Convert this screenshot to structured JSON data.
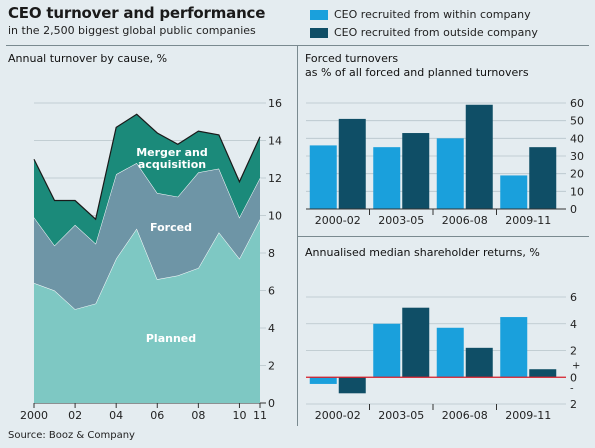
{
  "header": {
    "title": "CEO turnover and performance",
    "subtitle": "in the 2,500 biggest global public companies",
    "source": "Source: Booz & Company"
  },
  "legend": {
    "items": [
      {
        "label": "CEO recruited from within company",
        "color": "#1aa0dc"
      },
      {
        "label": "CEO recruited from outside company",
        "color": "#0f4e66"
      }
    ]
  },
  "colors": {
    "planned": "#7ec8c3",
    "forced": "#6e95a6",
    "merger": "#1b8a7a",
    "zero_line": "#d81e2a"
  },
  "chart_data": [
    {
      "id": "turnover",
      "type": "area",
      "title": "Annual turnover by cause, %",
      "x": [
        2000,
        2001,
        2002,
        2003,
        2004,
        2005,
        2006,
        2007,
        2008,
        2009,
        2010,
        2011
      ],
      "x_tick_labels": [
        "2000",
        "02",
        "04",
        "06",
        "08",
        "10",
        "11"
      ],
      "x_tick_values": [
        2000,
        2002,
        2004,
        2006,
        2008,
        2010,
        2011
      ],
      "ylim": [
        0,
        16
      ],
      "y_ticks": [
        0,
        2,
        4,
        6,
        8,
        10,
        12,
        14,
        16
      ],
      "stacked": true,
      "series": [
        {
          "name": "Planned",
          "values": [
            6.4,
            6.0,
            5.0,
            5.3,
            7.7,
            9.3,
            6.6,
            6.8,
            7.2,
            9.1,
            7.7,
            9.8
          ]
        },
        {
          "name": "Forced",
          "values": [
            3.5,
            2.4,
            4.5,
            3.2,
            4.5,
            3.5,
            4.6,
            4.2,
            5.1,
            3.4,
            2.2,
            2.2
          ]
        },
        {
          "name": "Merger and acquisition",
          "values": [
            3.1,
            2.4,
            1.3,
            1.3,
            2.5,
            2.6,
            3.2,
            2.8,
            2.2,
            1.8,
            1.9,
            2.2
          ]
        }
      ],
      "area_labels": [
        "Planned",
        "Forced",
        "Merger and",
        "acquisition"
      ]
    },
    {
      "id": "forced",
      "type": "bar",
      "title": "Forced turnovers",
      "subtitle": "as % of all forced and planned turnovers",
      "categories": [
        "2000-02",
        "2003-05",
        "2006-08",
        "2009-11"
      ],
      "ylim": [
        0,
        60
      ],
      "y_ticks": [
        0,
        10,
        20,
        30,
        40,
        50,
        60
      ],
      "series": [
        {
          "name": "CEO recruited from within company",
          "values": [
            36,
            35,
            40,
            19
          ]
        },
        {
          "name": "CEO recruited from outside company",
          "values": [
            51,
            43,
            59,
            35
          ]
        }
      ]
    },
    {
      "id": "returns",
      "type": "bar",
      "title": "Annualised median shareholder returns, %",
      "categories": [
        "2000-02",
        "2003-05",
        "2006-08",
        "2009-11"
      ],
      "ylim": [
        -2,
        6
      ],
      "y_ticks": [
        -2,
        0,
        2,
        4,
        6
      ],
      "y_tick_labels": [
        "2",
        "0",
        "2",
        "4",
        "6"
      ],
      "plus_label": "+",
      "minus_label": "-",
      "series": [
        {
          "name": "CEO recruited from within company",
          "values": [
            -0.5,
            4.0,
            3.7,
            4.5
          ]
        },
        {
          "name": "CEO recruited from outside company",
          "values": [
            -1.2,
            5.2,
            2.2,
            0.6
          ]
        }
      ]
    }
  ]
}
